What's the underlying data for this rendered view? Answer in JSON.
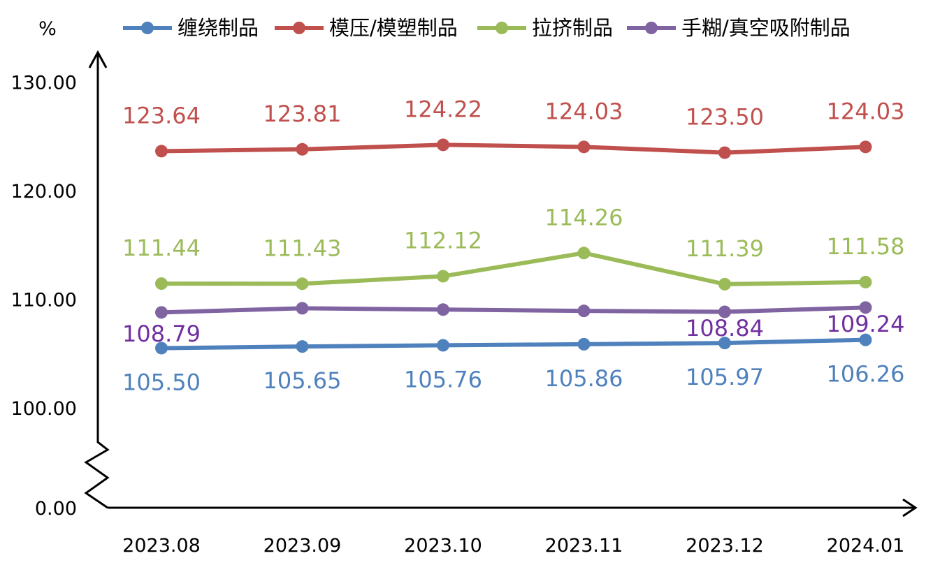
{
  "chart_data": {
    "type": "line",
    "ylabel": "%",
    "y_axis_break": true,
    "categories": [
      "2023.08",
      "2023.09",
      "2023.10",
      "2023.11",
      "2023.12",
      "2024.01"
    ],
    "yticks": [
      "0.00",
      "100.00",
      "110.00",
      "120.00",
      "130.00"
    ],
    "legend_position": "top",
    "series": [
      {
        "name": "缠绕制品",
        "color": "#4F81BD",
        "label_color": "#4F81BD",
        "values": [
          105.5,
          105.65,
          105.76,
          105.86,
          105.97,
          106.26
        ],
        "labels": [
          "105.50",
          "105.65",
          "105.76",
          "105.86",
          "105.97",
          "106.26"
        ]
      },
      {
        "name": "模压/模塑制品",
        "color": "#C0504D",
        "label_color": "#C0504D",
        "values": [
          123.64,
          123.81,
          124.22,
          124.03,
          123.5,
          124.03
        ],
        "labels": [
          "123.64",
          "123.81",
          "124.22",
          "124.03",
          "123.50",
          "124.03"
        ]
      },
      {
        "name": "拉挤制品",
        "color": "#9BBB59",
        "label_color": "#9BBB59",
        "values": [
          111.44,
          111.43,
          112.12,
          114.26,
          111.39,
          111.58
        ],
        "labels": [
          "111.44",
          "111.43",
          "112.12",
          "114.26",
          "111.39",
          "111.58"
        ]
      },
      {
        "name": "手糊/真空吸附制品",
        "color": "#8064A2",
        "label_color": "#7030A0",
        "values": [
          108.79,
          109.17,
          109.05,
          108.93,
          108.84,
          109.24
        ],
        "labels": [
          "108.79",
          "",
          "",
          "",
          "108.84",
          "109.24"
        ]
      }
    ]
  }
}
